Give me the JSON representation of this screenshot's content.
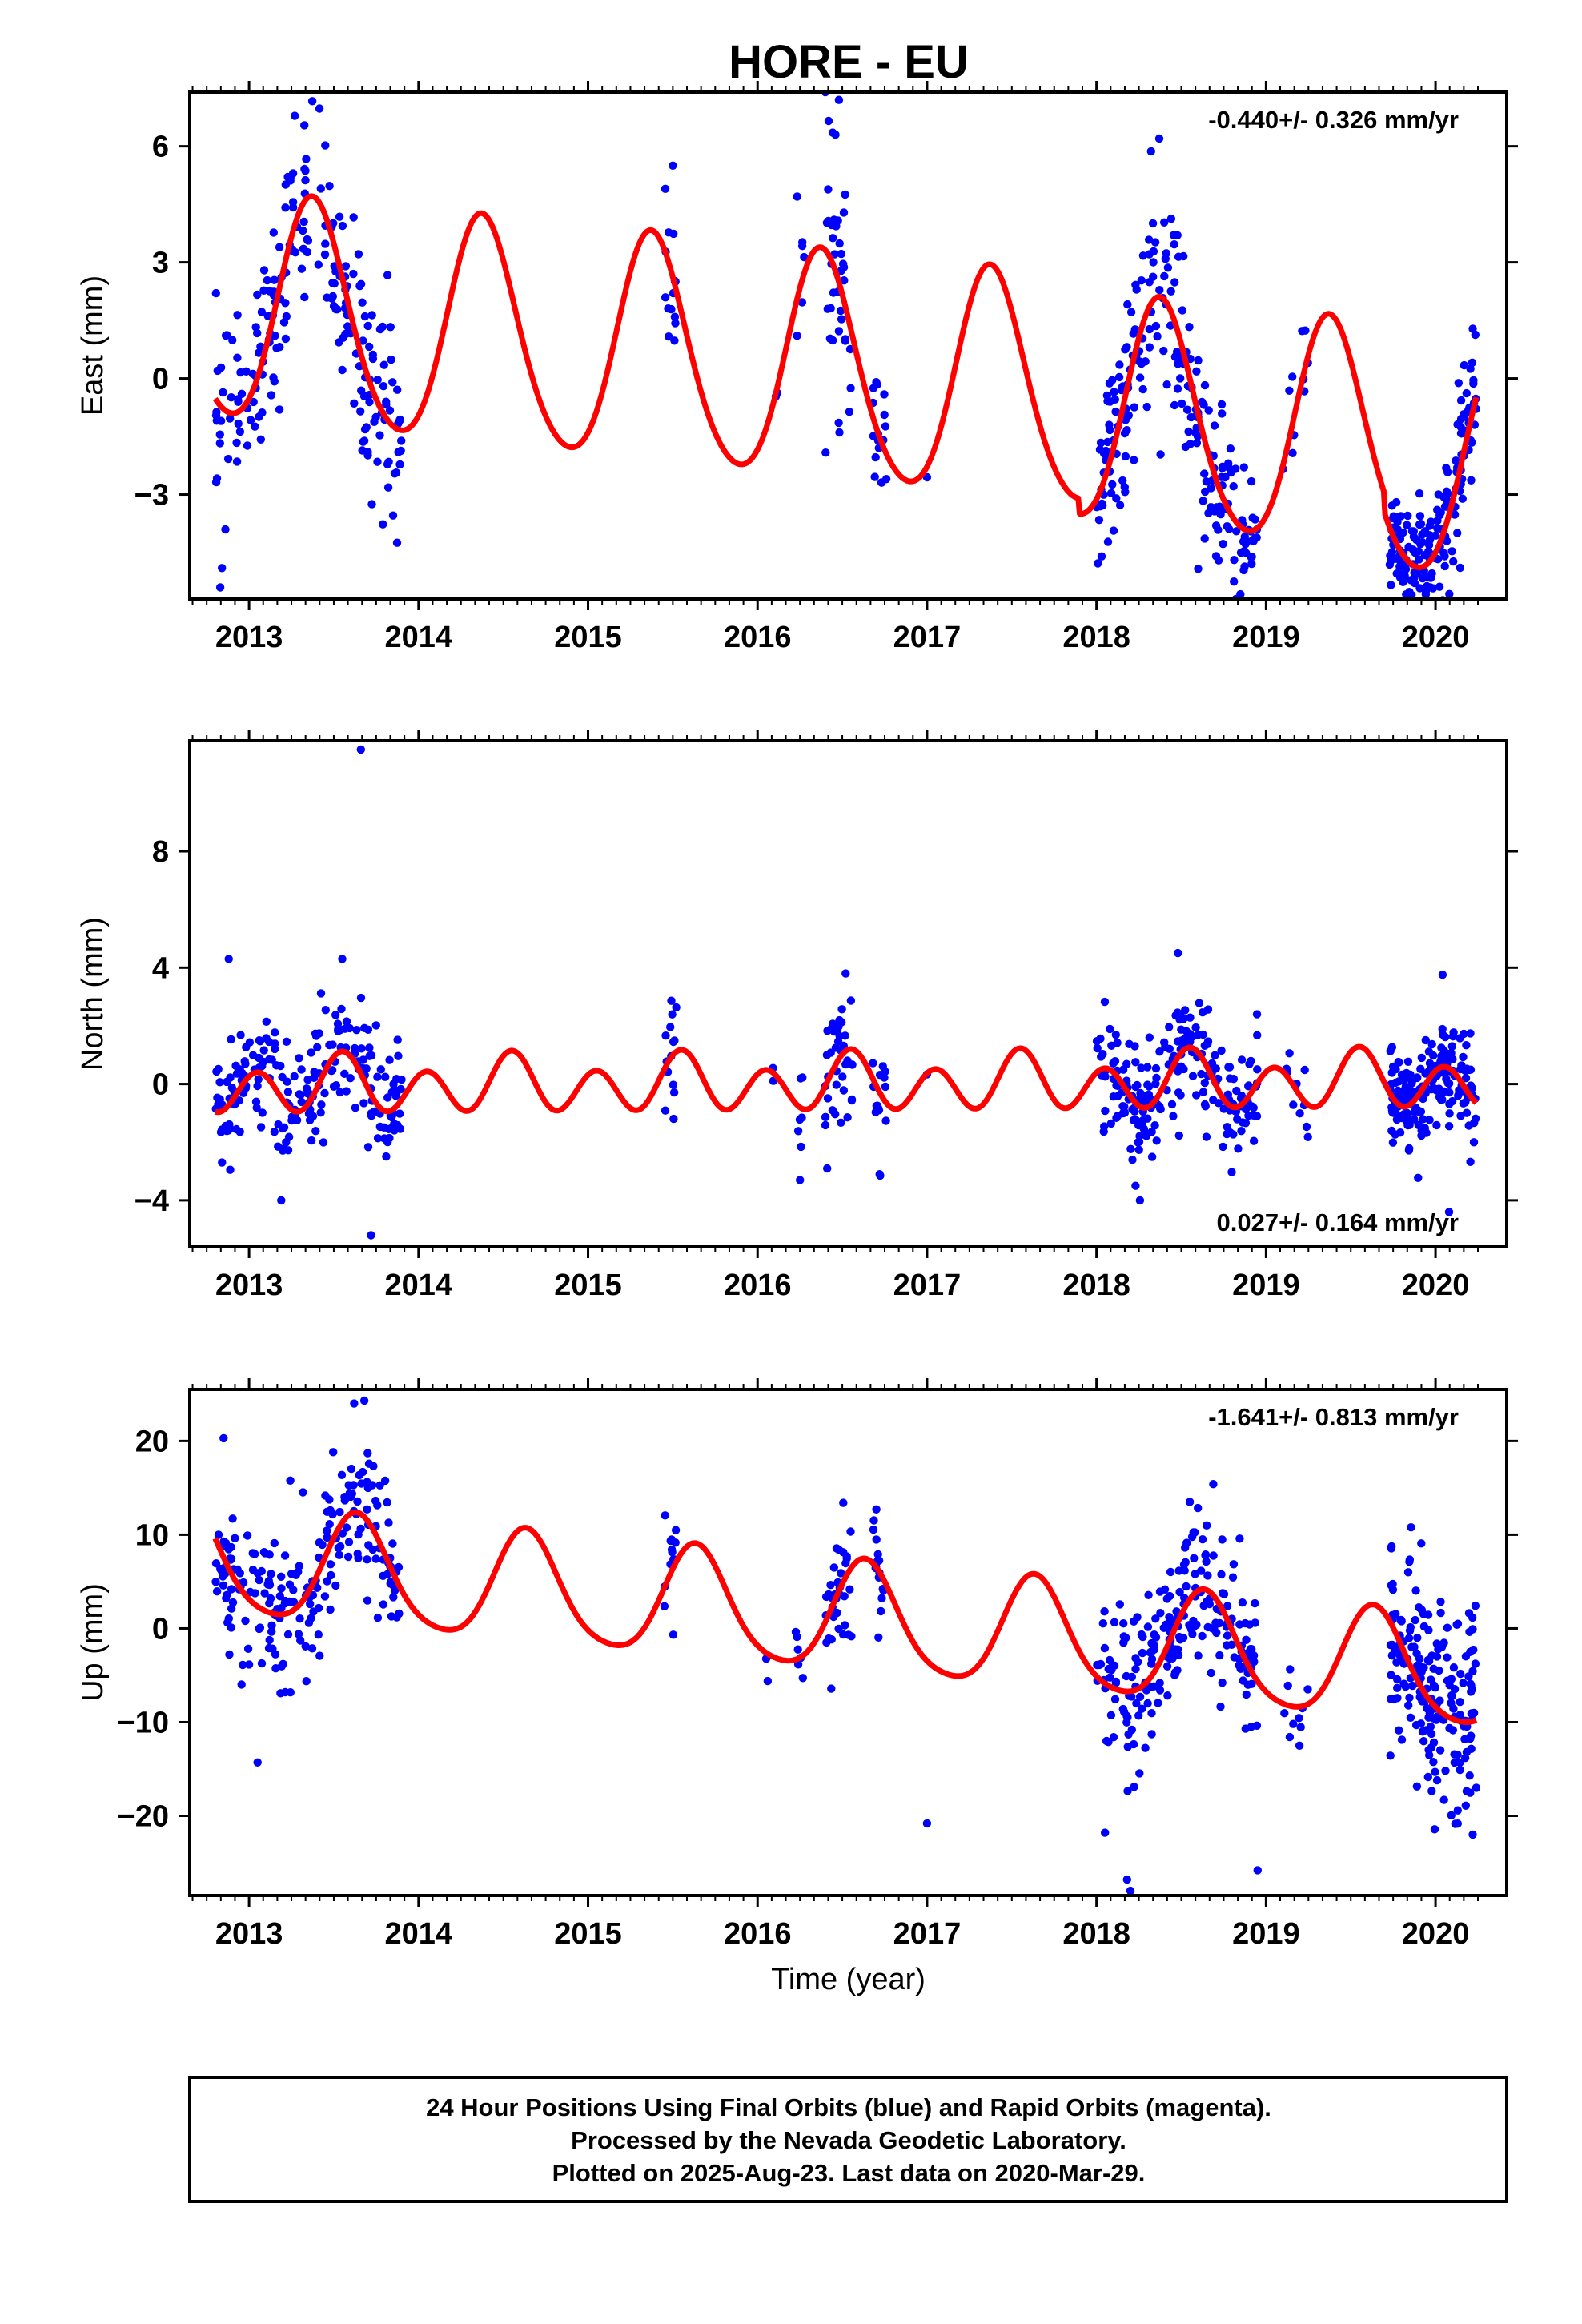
{
  "title": "HORE - EU",
  "footer": {
    "lines": [
      "24 Hour Positions Using Final Orbits (blue) and Rapid Orbits (magenta).",
      "Processed by the Nevada Geodetic Laboratory.",
      "Plotted on 2025-Aug-23. Last data on 2020-Mar-29."
    ]
  },
  "colors": {
    "final_orbits": "#0000ff",
    "model_fit": "#ff0000",
    "frame": "#000000"
  },
  "chart_data": [
    {
      "type": "scatter",
      "component": "east",
      "ylabel": "East (mm)",
      "xlabel": "",
      "rate_label": "-0.440+/- 0.326 mm/yr",
      "rate_position": "top-right",
      "xlim": [
        2012.65,
        2020.42
      ],
      "ylim": [
        -5.7,
        7.4
      ],
      "x_ticks": [
        2013,
        2014,
        2015,
        2016,
        2017,
        2018,
        2019,
        2020
      ],
      "x_tick_labels": [
        "2013",
        "2014",
        "2015",
        "2016",
        "2017",
        "2018",
        "2019",
        "2020"
      ],
      "y_ticks": [
        -3,
        0,
        3,
        6
      ],
      "y_tick_labels": [
        "−3",
        "0",
        "3",
        "6"
      ],
      "grid": false,
      "segments": [
        {
          "start": 2012.8,
          "end": 2013.9,
          "n": 210,
          "spread": 1.3
        },
        {
          "start": 2015.45,
          "end": 2015.52,
          "n": 14,
          "spread": 1.1
        },
        {
          "start": 2016.1,
          "end": 2016.12,
          "n": 2,
          "spread": 0.5
        },
        {
          "start": 2016.22,
          "end": 2016.28,
          "n": 6,
          "spread": 1.0
        },
        {
          "start": 2016.4,
          "end": 2016.56,
          "n": 38,
          "spread": 1.5
        },
        {
          "start": 2016.68,
          "end": 2016.76,
          "n": 16,
          "spread": 1.1
        },
        {
          "start": 2017.0,
          "end": 2017.01,
          "n": 1,
          "spread": 0.3
        },
        {
          "start": 2018.0,
          "end": 2018.95,
          "n": 220,
          "spread": 1.2
        },
        {
          "start": 2019.1,
          "end": 2019.25,
          "n": 10,
          "spread": 0.8
        },
        {
          "start": 2019.73,
          "end": 2020.24,
          "n": 190,
          "spread": 0.9
        }
      ],
      "outliers": [
        {
          "x": 2012.83,
          "y": -5.4
        },
        {
          "x": 2012.84,
          "y": -4.9
        },
        {
          "x": 2012.86,
          "y": -3.9
        },
        {
          "x": 2013.26,
          "y": 5.3
        },
        {
          "x": 2015.5,
          "y": 5.5
        },
        {
          "x": 2016.48,
          "y": 7.2
        },
        {
          "x": 2016.46,
          "y": 6.3
        },
        {
          "x": 2018.37,
          "y": 6.2
        },
        {
          "x": 2018.03,
          "y": -4.6
        },
        {
          "x": 2019.97,
          "y": -5.4
        },
        {
          "x": 2016.76,
          "y": -2.6
        },
        {
          "x": 2018.72,
          "y": -4.7
        }
      ],
      "model": {
        "offset": 0.15,
        "trend": -0.44,
        "ref_epoch": 2016.5,
        "annual_amp": 2.9,
        "annual_phase_peak": 2013.38,
        "semiannual_amp": 0.3,
        "semiannual_phase_peak": 2013.35,
        "piecewise_offsets": [
          {
            "from": 2017.9,
            "shift": -0.4
          },
          {
            "from": 2019.7,
            "shift": -0.5
          }
        ]
      }
    },
    {
      "type": "scatter",
      "component": "north",
      "ylabel": "North (mm)",
      "xlabel": "",
      "rate_label": "0.027+/- 0.164 mm/yr",
      "rate_position": "bottom-right",
      "xlim": [
        2012.65,
        2020.42
      ],
      "ylim": [
        -5.6,
        11.8
      ],
      "x_ticks": [
        2013,
        2014,
        2015,
        2016,
        2017,
        2018,
        2019,
        2020
      ],
      "x_tick_labels": [
        "2013",
        "2014",
        "2015",
        "2016",
        "2017",
        "2018",
        "2019",
        "2020"
      ],
      "y_ticks": [
        -4,
        0,
        4,
        8
      ],
      "y_tick_labels": [
        "−4",
        "0",
        "4",
        "8"
      ],
      "grid": false,
      "segments": [
        {
          "start": 2012.8,
          "end": 2013.9,
          "n": 210,
          "spread": 1.1
        },
        {
          "start": 2015.45,
          "end": 2015.52,
          "n": 14,
          "spread": 1.2
        },
        {
          "start": 2016.08,
          "end": 2016.1,
          "n": 2,
          "spread": 0.6
        },
        {
          "start": 2016.22,
          "end": 2016.28,
          "n": 6,
          "spread": 1.0
        },
        {
          "start": 2016.4,
          "end": 2016.56,
          "n": 38,
          "spread": 1.2
        },
        {
          "start": 2016.68,
          "end": 2016.76,
          "n": 16,
          "spread": 1.0
        },
        {
          "start": 2017.0,
          "end": 2017.01,
          "n": 1,
          "spread": 0.3
        },
        {
          "start": 2018.0,
          "end": 2018.95,
          "n": 220,
          "spread": 1.0
        },
        {
          "start": 2019.1,
          "end": 2019.25,
          "n": 10,
          "spread": 0.8
        },
        {
          "start": 2019.73,
          "end": 2020.24,
          "n": 190,
          "spread": 0.9
        }
      ],
      "outliers": [
        {
          "x": 2013.66,
          "y": 11.5
        },
        {
          "x": 2013.72,
          "y": -5.2
        },
        {
          "x": 2012.88,
          "y": 4.3
        },
        {
          "x": 2013.19,
          "y": -4.0
        },
        {
          "x": 2013.55,
          "y": 4.3
        },
        {
          "x": 2016.52,
          "y": 3.8
        },
        {
          "x": 2018.48,
          "y": 4.5
        },
        {
          "x": 2018.23,
          "y": -3.5
        },
        {
          "x": 2020.08,
          "y": -4.4
        },
        {
          "x": 2016.25,
          "y": -3.3
        },
        {
          "x": 2016.72,
          "y": -3.1
        }
      ],
      "model": {
        "offset": 0.0,
        "trend": 0.027,
        "ref_epoch": 2016.5,
        "annual_amp": 0.35,
        "annual_phase_peak": 2013.55,
        "semiannual_amp": 0.85,
        "semiannual_phase_peak": 2013.55,
        "piecewise_offsets": []
      }
    },
    {
      "type": "scatter",
      "component": "up",
      "ylabel": "Up (mm)",
      "xlabel": "Time (year)",
      "rate_label": "-1.641+/- 0.813 mm/yr",
      "rate_position": "top-right",
      "xlim": [
        2012.65,
        2020.42
      ],
      "ylim": [
        -28.5,
        25.5
      ],
      "x_ticks": [
        2013,
        2014,
        2015,
        2016,
        2017,
        2018,
        2019,
        2020
      ],
      "x_tick_labels": [
        "2013",
        "2014",
        "2015",
        "2016",
        "2017",
        "2018",
        "2019",
        "2020"
      ],
      "y_ticks": [
        -20,
        -10,
        0,
        10,
        20
      ],
      "y_tick_labels": [
        "−20",
        "−10",
        "0",
        "10",
        "20"
      ],
      "grid": false,
      "segments": [
        {
          "start": 2012.8,
          "end": 2013.9,
          "n": 210,
          "spread": 4.2
        },
        {
          "start": 2015.45,
          "end": 2015.52,
          "n": 14,
          "spread": 3.0
        },
        {
          "start": 2016.05,
          "end": 2016.07,
          "n": 2,
          "spread": 1.5
        },
        {
          "start": 2016.22,
          "end": 2016.28,
          "n": 6,
          "spread": 3.0
        },
        {
          "start": 2016.4,
          "end": 2016.56,
          "n": 38,
          "spread": 3.5
        },
        {
          "start": 2016.68,
          "end": 2016.76,
          "n": 16,
          "spread": 3.0
        },
        {
          "start": 2018.0,
          "end": 2018.95,
          "n": 220,
          "spread": 4.0
        },
        {
          "start": 2019.1,
          "end": 2019.25,
          "n": 10,
          "spread": 2.5
        },
        {
          "start": 2019.73,
          "end": 2020.24,
          "n": 190,
          "spread": 5.5
        }
      ],
      "outliers": [
        {
          "x": 2013.62,
          "y": 24.0
        },
        {
          "x": 2013.68,
          "y": 24.3
        },
        {
          "x": 2012.85,
          "y": 20.3
        },
        {
          "x": 2013.05,
          "y": -14.3
        },
        {
          "x": 2017.0,
          "y": -20.8
        },
        {
          "x": 2018.18,
          "y": -26.8
        },
        {
          "x": 2018.2,
          "y": -28.0
        },
        {
          "x": 2018.95,
          "y": -25.8
        },
        {
          "x": 2018.05,
          "y": -21.8
        },
        {
          "x": 2020.05,
          "y": -18.3
        },
        {
          "x": 2020.24,
          "y": -17.0
        },
        {
          "x": 2018.55,
          "y": 13.5
        }
      ],
      "model": {
        "offset": 1.0,
        "trend": -1.641,
        "ref_epoch": 2016.5,
        "annual_amp": 5.8,
        "annual_phase_peak": 2013.64,
        "semiannual_amp": 0.9,
        "semiannual_phase_peak": 2013.62,
        "piecewise_offsets": []
      }
    }
  ]
}
